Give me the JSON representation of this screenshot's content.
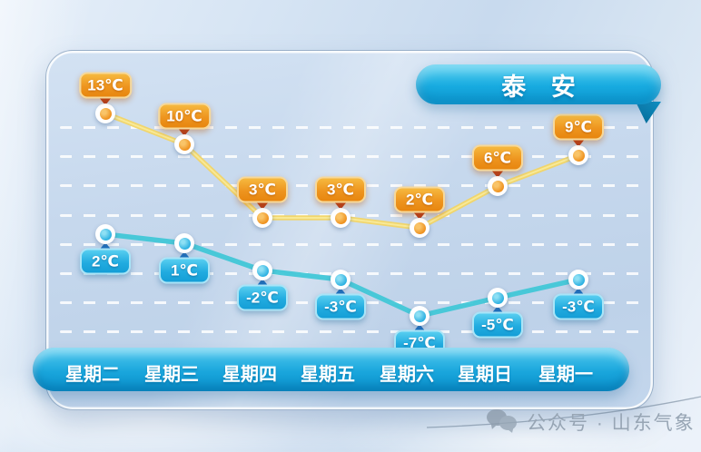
{
  "title": "泰 安",
  "watermark": {
    "text": "公众号 · 山东气象"
  },
  "days": [
    "星期二",
    "星期三",
    "星期四",
    "星期五",
    "星期六",
    "星期日",
    "星期一"
  ],
  "unit": "℃",
  "chart_data": {
    "type": "line",
    "categories": [
      "星期二",
      "星期三",
      "星期四",
      "星期五",
      "星期六",
      "星期日",
      "星期一"
    ],
    "series": [
      {
        "name": "high-temperature",
        "values": [
          13,
          10,
          3,
          3,
          2,
          6,
          9
        ],
        "labels": [
          "13℃",
          "10℃",
          "3℃",
          "3℃",
          "2℃",
          "6℃",
          "9℃"
        ]
      },
      {
        "name": "low-temperature",
        "values": [
          2,
          1,
          -2,
          -3,
          -7,
          -5,
          -3
        ],
        "labels": [
          "2℃",
          "1℃",
          "-2℃",
          "-3℃",
          "-7℃",
          "-5℃",
          "-3℃"
        ]
      }
    ],
    "title": "泰 安",
    "xlabel": "",
    "ylabel": "",
    "grid": true,
    "legend": "none"
  },
  "colors": {
    "high_line": "#f2d566",
    "high_label_bg": "#ee951f",
    "high_pointer": "#b43a1e",
    "low_line": "#41c7d7",
    "low_label_bg": "#22ace0",
    "low_pointer": "#1a6fc0",
    "banner_bg": "#14a7dd",
    "day_bar_bg": "#18a3d9",
    "card_bg": "#c6d8ed",
    "watermark_text": "#97a5b4"
  }
}
